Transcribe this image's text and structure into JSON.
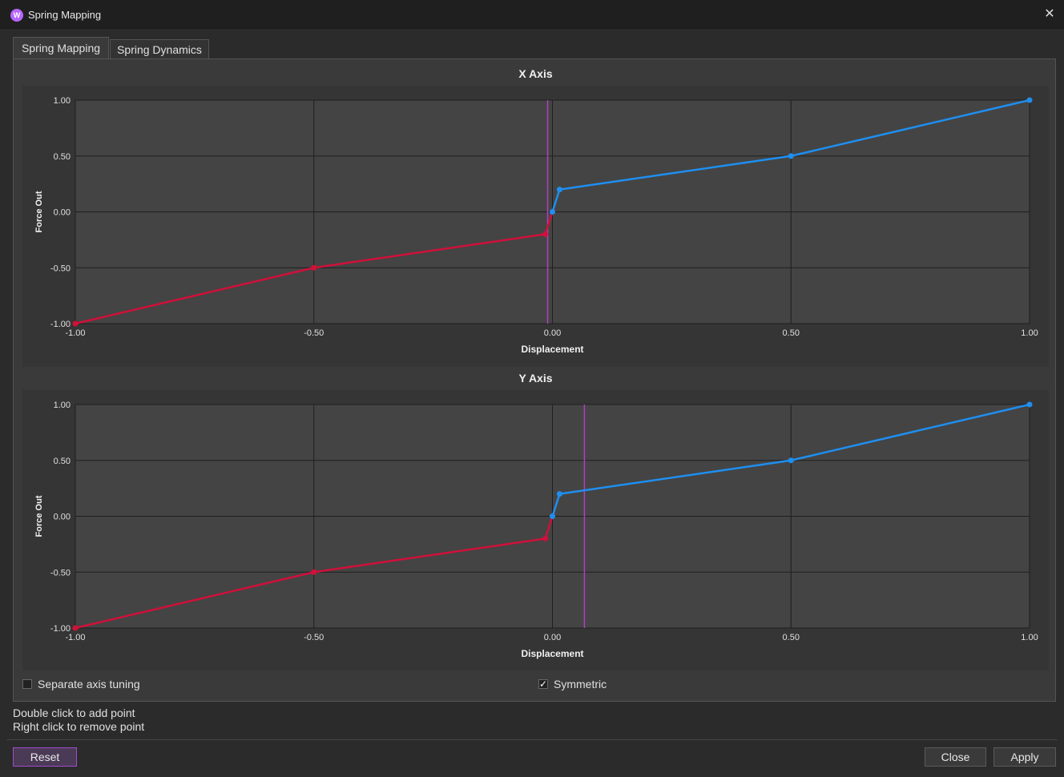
{
  "window": {
    "title": "Spring Mapping",
    "icon": "wooting-logo-icon",
    "close": "✕"
  },
  "tabs": [
    {
      "label": "Spring Mapping",
      "active": true
    },
    {
      "label": "Spring Dynamics",
      "active": false
    }
  ],
  "chart_data": [
    {
      "type": "line",
      "title": "X Axis",
      "xlabel": "Displacement",
      "ylabel": "Force Out",
      "xlim": [
        -1,
        1
      ],
      "ylim": [
        -1,
        1
      ],
      "xticks": [
        "-1.00",
        "-0.50",
        "0.00",
        "0.50",
        "1.00"
      ],
      "yticks": [
        "1.00",
        "0.50",
        "0.00",
        "-0.50",
        "-1.00"
      ],
      "grid": true,
      "negative_series": {
        "color": "#d0103a",
        "points": [
          [
            -1.0,
            -1.0
          ],
          [
            -0.5,
            -0.5
          ],
          [
            -0.015,
            -0.2
          ],
          [
            0.0,
            0.0
          ]
        ]
      },
      "positive_series": {
        "color": "#1e8ff0",
        "points": [
          [
            0.0,
            0.0
          ],
          [
            0.015,
            0.2
          ],
          [
            0.5,
            0.5
          ],
          [
            1.0,
            1.0
          ]
        ]
      },
      "indicator": {
        "x": -0.01,
        "color": "#b040c0"
      }
    },
    {
      "type": "line",
      "title": "Y Axis",
      "xlabel": "Displacement",
      "ylabel": "Force Out",
      "xlim": [
        -1,
        1
      ],
      "ylim": [
        -1,
        1
      ],
      "xticks": [
        "-1.00",
        "-0.50",
        "0.00",
        "0.50",
        "1.00"
      ],
      "yticks": [
        "1.00",
        "0.50",
        "0.00",
        "-0.50",
        "-1.00"
      ],
      "grid": true,
      "negative_series": {
        "color": "#d0103a",
        "points": [
          [
            -1.0,
            -1.0
          ],
          [
            -0.5,
            -0.5
          ],
          [
            -0.015,
            -0.2
          ],
          [
            0.0,
            0.0
          ]
        ]
      },
      "positive_series": {
        "color": "#1e8ff0",
        "points": [
          [
            0.0,
            0.0
          ],
          [
            0.015,
            0.2
          ],
          [
            0.5,
            0.5
          ],
          [
            1.0,
            1.0
          ]
        ]
      },
      "indicator": {
        "x": 0.067,
        "color": "#b040c0"
      }
    }
  ],
  "options": {
    "separate_axis": {
      "label": "Separate axis tuning",
      "checked": false
    },
    "symmetric": {
      "label": "Symmetric",
      "checked": true,
      "check_glyph": "✓"
    }
  },
  "hints": {
    "line1": "Double click to add point",
    "line2": "Right click to remove point"
  },
  "buttons": {
    "reset": "Reset",
    "close": "Close",
    "apply": "Apply"
  },
  "colors": {
    "accent": "#a14cd0",
    "negative": "#d0103a",
    "positive": "#1e8ff0"
  }
}
